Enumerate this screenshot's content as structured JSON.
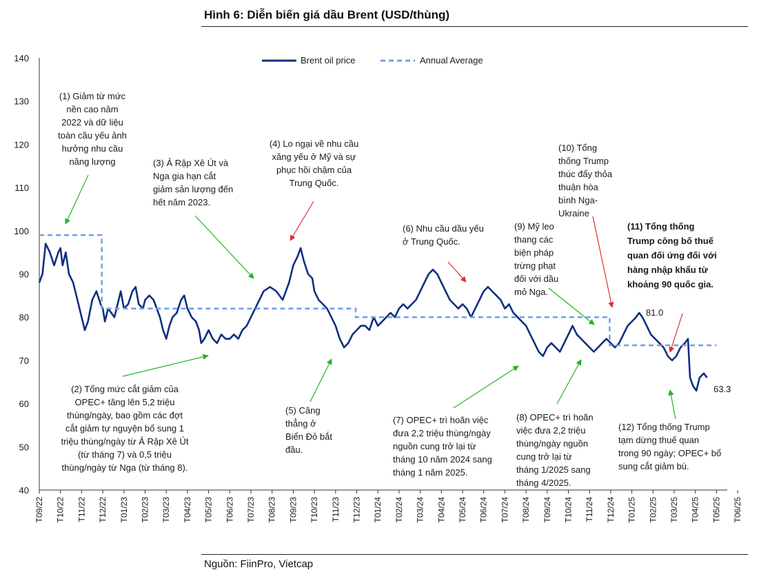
{
  "header": {
    "title": "Hình 6: Diễn biến giá dầu Brent (USD/thùng)"
  },
  "footer": {
    "source": "Nguồn: FiinPro, Vietcap"
  },
  "colors": {
    "series": "#0d2f7f",
    "average": "#6f9de8",
    "arrow_green": "#22b422",
    "arrow_red": "#d9302e"
  },
  "chart_data": {
    "type": "line",
    "ylim": [
      40,
      140
    ],
    "yticks": [
      40,
      50,
      60,
      70,
      80,
      90,
      100,
      110,
      120,
      130,
      140
    ],
    "xticks": [
      "T09/22",
      "T10/22",
      "T11/22",
      "T12/22",
      "T01/23",
      "T02/23",
      "T03/23",
      "T04/23",
      "T05/23",
      "T06/23",
      "T07/23",
      "T08/23",
      "T09/23",
      "T10/23",
      "T11/23",
      "T12/23",
      "T01/24",
      "T02/24",
      "T03/24",
      "T04/24",
      "T05/24",
      "T06/24",
      "T07/24",
      "T08/24",
      "T09/24",
      "T10/24",
      "T11/24",
      "T12/24",
      "T01/25",
      "T02/25",
      "T03/25",
      "T04/25",
      "T05/25",
      "T06/25"
    ],
    "legend": {
      "position": "top-center",
      "items": [
        "Brent oil price",
        "Annual Average"
      ]
    },
    "series": [
      {
        "name": "Brent oil price",
        "style": "solid",
        "points": [
          [
            0.0,
            88
          ],
          [
            0.15,
            90
          ],
          [
            0.3,
            97
          ],
          [
            0.5,
            95
          ],
          [
            0.7,
            92
          ],
          [
            0.9,
            95
          ],
          [
            1.0,
            96
          ],
          [
            1.1,
            92
          ],
          [
            1.25,
            95
          ],
          [
            1.4,
            90
          ],
          [
            1.6,
            88
          ],
          [
            1.8,
            84
          ],
          [
            2.0,
            80
          ],
          [
            2.15,
            77
          ],
          [
            2.3,
            79
          ],
          [
            2.5,
            84
          ],
          [
            2.7,
            86
          ],
          [
            2.9,
            83
          ],
          [
            3.0,
            82
          ],
          [
            3.1,
            79
          ],
          [
            3.25,
            82
          ],
          [
            3.4,
            81
          ],
          [
            3.55,
            80
          ],
          [
            3.7,
            83
          ],
          [
            3.85,
            86
          ],
          [
            4.0,
            82
          ],
          [
            4.2,
            83
          ],
          [
            4.4,
            86
          ],
          [
            4.55,
            87
          ],
          [
            4.7,
            83
          ],
          [
            4.9,
            82
          ],
          [
            5.0,
            84
          ],
          [
            5.2,
            85
          ],
          [
            5.4,
            84
          ],
          [
            5.55,
            82
          ],
          [
            5.7,
            80
          ],
          [
            5.85,
            77
          ],
          [
            6.0,
            75
          ],
          [
            6.15,
            78
          ],
          [
            6.3,
            80
          ],
          [
            6.5,
            81
          ],
          [
            6.7,
            84
          ],
          [
            6.85,
            85
          ],
          [
            7.0,
            82
          ],
          [
            7.2,
            80
          ],
          [
            7.4,
            79
          ],
          [
            7.55,
            77
          ],
          [
            7.65,
            74
          ],
          [
            7.8,
            75
          ],
          [
            8.0,
            77
          ],
          [
            8.2,
            75
          ],
          [
            8.4,
            74
          ],
          [
            8.6,
            76
          ],
          [
            8.8,
            75
          ],
          [
            9.0,
            75
          ],
          [
            9.2,
            76
          ],
          [
            9.4,
            75
          ],
          [
            9.6,
            77
          ],
          [
            9.8,
            78
          ],
          [
            10.0,
            80
          ],
          [
            10.3,
            83
          ],
          [
            10.6,
            86
          ],
          [
            10.9,
            87
          ],
          [
            11.2,
            86
          ],
          [
            11.5,
            84
          ],
          [
            11.8,
            88
          ],
          [
            12.0,
            92
          ],
          [
            12.2,
            94
          ],
          [
            12.35,
            96
          ],
          [
            12.5,
            93
          ],
          [
            12.7,
            90
          ],
          [
            12.9,
            89
          ],
          [
            13.0,
            86
          ],
          [
            13.2,
            84
          ],
          [
            13.4,
            83
          ],
          [
            13.6,
            82
          ],
          [
            13.8,
            80
          ],
          [
            14.0,
            78
          ],
          [
            14.2,
            75
          ],
          [
            14.4,
            73
          ],
          [
            14.6,
            74
          ],
          [
            14.8,
            76
          ],
          [
            15.0,
            77
          ],
          [
            15.2,
            78
          ],
          [
            15.4,
            78
          ],
          [
            15.6,
            77
          ],
          [
            15.8,
            80
          ],
          [
            16.0,
            78
          ],
          [
            16.2,
            79
          ],
          [
            16.4,
            80
          ],
          [
            16.6,
            81
          ],
          [
            16.8,
            80
          ],
          [
            17.0,
            82
          ],
          [
            17.2,
            83
          ],
          [
            17.4,
            82
          ],
          [
            17.6,
            83
          ],
          [
            17.8,
            84
          ],
          [
            18.0,
            86
          ],
          [
            18.2,
            88
          ],
          [
            18.4,
            90
          ],
          [
            18.6,
            91
          ],
          [
            18.8,
            90
          ],
          [
            19.0,
            88
          ],
          [
            19.2,
            86
          ],
          [
            19.4,
            84
          ],
          [
            19.6,
            83
          ],
          [
            19.8,
            82
          ],
          [
            20.0,
            83
          ],
          [
            20.2,
            82
          ],
          [
            20.4,
            80
          ],
          [
            20.6,
            82
          ],
          [
            20.8,
            84
          ],
          [
            21.0,
            86
          ],
          [
            21.2,
            87
          ],
          [
            21.4,
            86
          ],
          [
            21.6,
            85
          ],
          [
            21.8,
            84
          ],
          [
            22.0,
            82
          ],
          [
            22.2,
            83
          ],
          [
            22.4,
            81
          ],
          [
            22.6,
            80
          ],
          [
            22.8,
            79
          ],
          [
            23.0,
            78
          ],
          [
            23.2,
            76
          ],
          [
            23.4,
            74
          ],
          [
            23.6,
            72
          ],
          [
            23.8,
            71
          ],
          [
            24.0,
            73
          ],
          [
            24.2,
            74
          ],
          [
            24.4,
            73
          ],
          [
            24.6,
            72
          ],
          [
            24.8,
            74
          ],
          [
            25.0,
            76
          ],
          [
            25.2,
            78
          ],
          [
            25.4,
            76
          ],
          [
            25.6,
            75
          ],
          [
            25.8,
            74
          ],
          [
            26.0,
            73
          ],
          [
            26.2,
            72
          ],
          [
            26.4,
            73
          ],
          [
            26.6,
            74
          ],
          [
            26.8,
            75
          ],
          [
            27.0,
            74
          ],
          [
            27.2,
            73
          ],
          [
            27.4,
            74
          ],
          [
            27.6,
            76
          ],
          [
            27.8,
            78
          ],
          [
            28.0,
            79
          ],
          [
            28.2,
            80
          ],
          [
            28.35,
            81
          ],
          [
            28.5,
            80
          ],
          [
            28.7,
            78
          ],
          [
            28.9,
            76
          ],
          [
            29.1,
            75
          ],
          [
            29.3,
            74
          ],
          [
            29.5,
            73
          ],
          [
            29.7,
            71
          ],
          [
            29.9,
            70
          ],
          [
            30.1,
            71
          ],
          [
            30.3,
            73
          ],
          [
            30.5,
            74
          ],
          [
            30.65,
            75
          ],
          [
            30.75,
            66
          ],
          [
            30.9,
            64
          ],
          [
            31.05,
            63
          ],
          [
            31.2,
            66
          ],
          [
            31.4,
            67
          ],
          [
            31.55,
            66
          ]
        ]
      },
      {
        "name": "Annual Average",
        "style": "dashed",
        "points": [
          [
            0.0,
            99
          ],
          [
            2.95,
            99
          ],
          [
            2.95,
            82
          ],
          [
            14.95,
            82
          ],
          [
            14.95,
            80
          ],
          [
            26.95,
            80
          ],
          [
            26.95,
            73.5
          ],
          [
            32.0,
            73.5
          ]
        ]
      }
    ],
    "value_labels": [
      {
        "text": "81.0",
        "x": 28.4,
        "y": 81
      },
      {
        "text": "63.3",
        "x": 31.6,
        "y": 63.3
      }
    ],
    "annotations": [
      {
        "id": "a1",
        "text": "(1) Giảm từ mức\nnền cao năm\n2022 và dữ liệu\ntoàn cầu yếu ảnh\nhưởng nhu cầu\nnăng lượng",
        "bold": false,
        "align": "center"
      },
      {
        "id": "a2",
        "text": "(2) Tổng mức cắt giảm của\nOPEC+ tăng lên 5,2 triệu\nthùng/ngày, bao gồm các đợt\ncắt giảm tự nguyện bổ sung 1\ntriệu thùng/ngày từ Ả Rập Xê Út\n(từ tháng 7) và 0,5 triệu\nthùng/ngày từ Nga (từ tháng 8).",
        "bold": false,
        "align": "center"
      },
      {
        "id": "a3",
        "text": "(3) Ả Rập Xê Út và\nNga gia hạn cắt\ngiảm sản lượng đến\nhết năm 2023.",
        "bold": false,
        "align": "left"
      },
      {
        "id": "a4",
        "text": "(4) Lo ngại về nhu cầu\nxăng yếu ở Mỹ và sự\nphục hồi chậm của\nTrung Quốc.",
        "bold": false,
        "align": "center"
      },
      {
        "id": "a5",
        "text": "(5) Căng\nthẳng ở\nBiển Đỏ bắt\nđầu.",
        "bold": false,
        "align": "left"
      },
      {
        "id": "a6",
        "text": "(6) Nhu cầu dầu yếu\nở Trung Quốc.",
        "bold": false,
        "align": "left"
      },
      {
        "id": "a7",
        "text": "(7) OPEC+ trì hoãn việc\nđưa 2,2 triệu thùng/ngày\nnguồn cung trở lại từ\ntháng 10 năm 2024 sang\ntháng 1 năm 2025.",
        "bold": false,
        "align": "left"
      },
      {
        "id": "a8",
        "text": "(8) OPEC+ trì hoãn\nviệc đưa 2,2 triệu\nthùng/ngày nguồn\ncung trở lại từ\ntháng 1/2025 sang\ntháng 4/2025.",
        "bold": false,
        "align": "left"
      },
      {
        "id": "a9",
        "text": "(9) Mỹ leo\nthang các\nbiện pháp\ntrừng phạt\nđối với dầu\nmỏ Nga.",
        "bold": false,
        "align": "left"
      },
      {
        "id": "a10",
        "text": "(10) Tổng\nthống Trump\nthúc đẩy thỏa\nthuận hòa\nbình Nga-\nUkraine",
        "bold": false,
        "align": "left"
      },
      {
        "id": "a11",
        "text": "(11) Tổng thống\nTrump công bố thuế\nquan đối ứng đối với\nhàng nhập khẩu từ\nkhoảng 90 quốc gia.",
        "bold": true,
        "align": "left"
      },
      {
        "id": "a12",
        "text": "(12) Tổng thống Trump\ntạm dừng thuế quan\ntrong 90 ngày; OPEC+ bổ\nsung cắt giảm bù.",
        "bold": false,
        "align": "left"
      }
    ],
    "arrows": [
      {
        "color": "green",
        "from": [
          128,
          254
        ],
        "to": [
          95,
          325
        ]
      },
      {
        "color": "green",
        "from": [
          178,
          546
        ],
        "to": [
          302,
          516
        ]
      },
      {
        "color": "green",
        "from": [
          283,
          313
        ],
        "to": [
          368,
          404
        ]
      },
      {
        "color": "red",
        "from": [
          455,
          292
        ],
        "to": [
          421,
          349
        ]
      },
      {
        "color": "green",
        "from": [
          450,
          583
        ],
        "to": [
          481,
          521
        ]
      },
      {
        "color": "red",
        "from": [
          650,
          380
        ],
        "to": [
          676,
          409
        ]
      },
      {
        "color": "green",
        "from": [
          658,
          592
        ],
        "to": [
          752,
          531
        ]
      },
      {
        "color": "green",
        "from": [
          808,
          586
        ],
        "to": [
          843,
          522
        ]
      },
      {
        "color": "green",
        "from": [
          796,
          418
        ],
        "to": [
          862,
          471
        ]
      },
      {
        "color": "red",
        "from": [
          860,
          314
        ],
        "to": [
          888,
          446
        ]
      },
      {
        "color": "red",
        "from": [
          990,
          455
        ],
        "to": [
          972,
          511
        ]
      },
      {
        "color": "green",
        "from": [
          980,
          608
        ],
        "to": [
          972,
          566
        ]
      }
    ]
  }
}
